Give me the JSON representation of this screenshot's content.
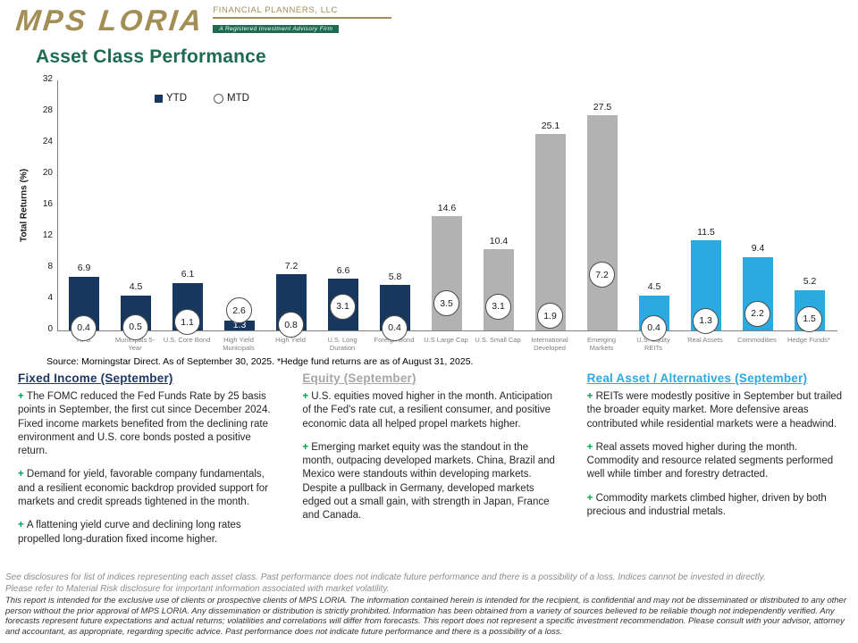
{
  "header": {
    "logo_text": "MPS LORIA",
    "logo_subtitle": "FINANCIAL PLANNERS, LLC",
    "logo_tagline": "A Registered Investment Advisory Firm",
    "page_title": "Asset Class Performance"
  },
  "colors": {
    "brand_gold": "#A38E55",
    "brand_green": "#1E6B4F",
    "header_fixed_navy": "#1F3864",
    "header_equity_gray": "#A6A6A6",
    "header_real_blue": "#29ABE2",
    "bar_navy": "#17375E",
    "bar_gray": "#B2B2B2",
    "bar_blue": "#29ABE2",
    "bullet_green": "#00A651"
  },
  "chart_data": {
    "type": "bar",
    "title": "",
    "ylabel": "Total Returns (%)",
    "ylim": [
      0,
      32
    ],
    "ytick_step": 4,
    "grid": false,
    "legend_position": "top-left",
    "legend": [
      {
        "label": "YTD",
        "marker": "square",
        "color": "#17375E"
      },
      {
        "label": "MTD",
        "marker": "circle",
        "color": "#FFFFFF"
      }
    ],
    "categories": [
      "TIPS",
      "Municipals 5-Year",
      "U.S. Core Bond",
      "High Yield Municipals",
      "High Yield",
      "U.S. Long Duration",
      "Foreign Bond",
      "U.S Large Cap",
      "U.S. Small Cap",
      "International Developed",
      "Emerging Markets",
      "U.S. Equity REITs",
      "Real Assets",
      "Commodities",
      "Hedge Funds*"
    ],
    "series": [
      {
        "name": "YTD",
        "values": [
          6.9,
          4.5,
          6.1,
          1.3,
          7.2,
          6.6,
          5.8,
          14.6,
          10.4,
          25.1,
          27.5,
          4.5,
          11.5,
          9.4,
          5.2
        ]
      },
      {
        "name": "MTD",
        "values": [
          0.4,
          0.5,
          1.1,
          2.6,
          0.8,
          3.1,
          0.4,
          3.5,
          3.1,
          1.9,
          7.2,
          0.4,
          1.3,
          2.2,
          1.5
        ]
      }
    ],
    "bar_colors": [
      "#17375E",
      "#17375E",
      "#17375E",
      "#17375E",
      "#17375E",
      "#17375E",
      "#17375E",
      "#B2B2B2",
      "#B2B2B2",
      "#B2B2B2",
      "#B2B2B2",
      "#29ABE2",
      "#29ABE2",
      "#29ABE2",
      "#29ABE2"
    ]
  },
  "source_note": "Source: Morningstar Direct. As of September 30, 2025. *Hedge fund returns are as of August 31, 2025.",
  "bullet_char": "+",
  "columns": [
    {
      "title": "Fixed Income (September)",
      "color": "#1F3864",
      "paragraphs": [
        "The FOMC reduced the Fed Funds Rate by 25 basis points in September, the first cut since December 2024. Fixed income markets benefited from the declining rate environment and U.S. core bonds posted a positive return.",
        "Demand for yield, favorable company fundamentals, and a resilient economic backdrop provided support for markets and credit spreads tightened in the month.",
        "A flattening yield curve and declining long rates propelled long-duration fixed income higher."
      ]
    },
    {
      "title": "Equity (September)",
      "color": "#A6A6A6",
      "paragraphs": [
        "U.S. equities moved higher in the month. Anticipation of the Fed's rate cut, a resilient consumer, and positive economic data all helped propel markets higher.",
        "Emerging market equity was the standout in the month, outpacing developed markets. China, Brazil and Mexico were standouts within developing markets. Despite a pullback in Germany, developed markets edged out a small gain, with strength in Japan, France and Canada."
      ]
    },
    {
      "title": "Real Asset / Alternatives (September)",
      "color": "#29ABE2",
      "paragraphs": [
        "REITs were modestly positive in September but trailed the broader equity market. More defensive areas contributed while residential markets were a headwind.",
        "Real assets moved higher during the month. Commodity and resource related segments performed well while timber and forestry detracted.",
        "Commodity markets climbed higher, driven by both precious and industrial metals."
      ]
    }
  ],
  "footer": {
    "disclosure_lines": [
      "See disclosures for list of indices representing each asset class. Past performance does not indicate future performance and there is a possibility of a loss. Indices cannot be invested in directly.",
      "Please refer to Material Risk disclosure for important information associated with market volatility."
    ],
    "fine_print": "This report is intended for the exclusive use of clients or prospective clients of MPS LORIA. The information contained herein is intended for the recipient, is confidential and may not be disseminated or distributed to any other person without the prior approval of MPS LORIA. Any dissemination or distribution is strictly prohibited. Information has been obtained from a variety of sources believed to be reliable though not independently verified. Any forecasts represent future expectations and actual returns; volatilities and correlations will differ from forecasts. This report does not represent a specific investment recommendation. Please consult with your advisor, attorney and accountant, as appropriate, regarding specific advice. Past performance does not indicate future performance and there is a possibility of a loss."
  }
}
